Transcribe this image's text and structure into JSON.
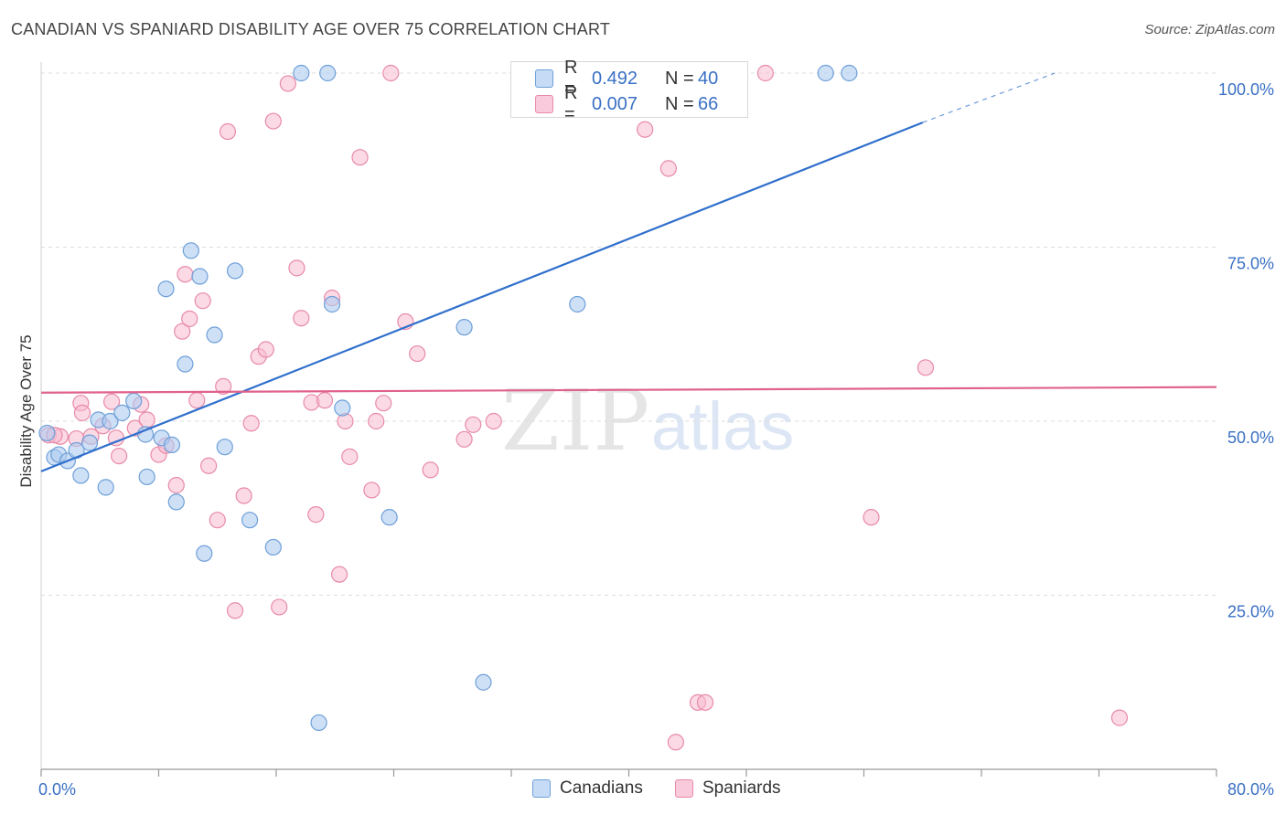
{
  "header": {
    "title": "CANADIAN VS SPANIARD DISABILITY AGE OVER 75 CORRELATION CHART",
    "source": "Source: ZipAtlas.com"
  },
  "legend_stats": {
    "canadians": {
      "r_label": "R =",
      "r_value": "0.492",
      "n_label": "N =",
      "n_value": "40"
    },
    "spaniards": {
      "r_label": "R =",
      "r_value": "0.007",
      "n_label": "N =",
      "n_value": "66"
    }
  },
  "watermark": {
    "zip": "ZIP",
    "atlas": "atlas"
  },
  "colors": {
    "canadians_fill": "#aecbf0",
    "canadians_stroke": "#6e9fd8",
    "canadians_line": "#2f6fcc",
    "spaniards_fill": "#f7bcd0",
    "spaniards_stroke": "#e88aa8",
    "spaniards_line": "#e0628c",
    "tick_text": "#3a70c4",
    "grid": "#dddddd"
  },
  "chart_data": {
    "type": "scatter",
    "title": "CANADIAN VS SPANIARD DISABILITY AGE OVER 75 CORRELATION CHART",
    "xlabel": "",
    "ylabel": "Disability Age Over 75",
    "xlim": [
      0,
      80
    ],
    "ylim": [
      0,
      100
    ],
    "x_tick_labels": [
      "0.0%",
      "80.0%"
    ],
    "y_ticks": [
      25,
      50,
      75,
      100
    ],
    "y_tick_labels": [
      "25.0%",
      "50.0%",
      "75.0%",
      "100.0%"
    ],
    "grid": true,
    "legend_position": "bottom",
    "series": [
      {
        "name": "Canadians",
        "r": 0.492,
        "n": 40,
        "trend": {
          "x0": 0,
          "y0": 42.8,
          "x1": 60,
          "y1": 92.9,
          "dashed_to_x": 69,
          "dashed_to_y": 100
        },
        "points": [
          [
            0.4,
            48.3
          ],
          [
            0.9,
            44.8
          ],
          [
            1.2,
            45.2
          ],
          [
            1.8,
            44.3
          ],
          [
            2.4,
            45.8
          ],
          [
            2.7,
            42.2
          ],
          [
            3.3,
            46.9
          ],
          [
            3.9,
            50.2
          ],
          [
            4.4,
            40.5
          ],
          [
            4.7,
            50.0
          ],
          [
            5.5,
            51.2
          ],
          [
            6.3,
            52.9
          ],
          [
            7.1,
            48.1
          ],
          [
            7.2,
            42.0
          ],
          [
            8.2,
            47.6
          ],
          [
            8.5,
            69.0
          ],
          [
            8.9,
            46.6
          ],
          [
            9.2,
            38.4
          ],
          [
            9.8,
            58.2
          ],
          [
            10.2,
            74.5
          ],
          [
            10.8,
            70.8
          ],
          [
            11.1,
            31.0
          ],
          [
            11.8,
            62.4
          ],
          [
            12.5,
            46.3
          ],
          [
            13.2,
            71.6
          ],
          [
            14.2,
            35.8
          ],
          [
            15.8,
            31.9
          ],
          [
            17.7,
            100.0
          ],
          [
            18.9,
            6.7
          ],
          [
            19.5,
            100.0
          ],
          [
            19.8,
            66.8
          ],
          [
            20.5,
            51.9
          ],
          [
            23.7,
            36.2
          ],
          [
            28.8,
            63.5
          ],
          [
            30.1,
            12.5
          ],
          [
            37.2,
            100.0
          ],
          [
            36.5,
            66.8
          ],
          [
            53.4,
            100.0
          ],
          [
            55.0,
            100.0
          ],
          [
            35.8,
            100.0
          ]
        ]
      },
      {
        "name": "Spaniards",
        "r": 0.007,
        "n": 66,
        "trend": {
          "x0": 0,
          "y0": 54.1,
          "x1": 80,
          "y1": 54.9
        },
        "points": [
          [
            0.5,
            48.0
          ],
          [
            1.3,
            47.8
          ],
          [
            2.4,
            47.5
          ],
          [
            2.7,
            52.6
          ],
          [
            2.8,
            51.2
          ],
          [
            3.4,
            47.8
          ],
          [
            4.2,
            49.3
          ],
          [
            4.8,
            52.8
          ],
          [
            5.1,
            47.6
          ],
          [
            5.3,
            45.0
          ],
          [
            6.4,
            49.0
          ],
          [
            6.8,
            52.4
          ],
          [
            7.2,
            50.2
          ],
          [
            8.0,
            45.2
          ],
          [
            8.5,
            46.5
          ],
          [
            9.2,
            40.8
          ],
          [
            9.6,
            62.9
          ],
          [
            9.8,
            71.1
          ],
          [
            10.1,
            64.7
          ],
          [
            10.6,
            53.0
          ],
          [
            11.0,
            67.3
          ],
          [
            11.4,
            43.6
          ],
          [
            12.0,
            35.8
          ],
          [
            12.4,
            55.0
          ],
          [
            12.7,
            91.6
          ],
          [
            13.2,
            22.8
          ],
          [
            13.8,
            39.3
          ],
          [
            14.3,
            49.7
          ],
          [
            14.8,
            59.3
          ],
          [
            15.3,
            60.3
          ],
          [
            15.8,
            93.1
          ],
          [
            16.2,
            23.3
          ],
          [
            16.8,
            98.5
          ],
          [
            17.4,
            72.0
          ],
          [
            17.7,
            64.8
          ],
          [
            18.4,
            52.7
          ],
          [
            18.7,
            36.6
          ],
          [
            19.3,
            53.0
          ],
          [
            19.8,
            67.7
          ],
          [
            20.3,
            28.0
          ],
          [
            20.7,
            50.0
          ],
          [
            21.0,
            44.9
          ],
          [
            21.7,
            87.9
          ],
          [
            22.5,
            40.1
          ],
          [
            22.8,
            50.0
          ],
          [
            23.3,
            52.6
          ],
          [
            23.8,
            100.0
          ],
          [
            24.8,
            64.3
          ],
          [
            25.6,
            59.7
          ],
          [
            26.5,
            43.0
          ],
          [
            28.8,
            47.4
          ],
          [
            29.4,
            49.5
          ],
          [
            30.8,
            50.0
          ],
          [
            41.1,
            91.9
          ],
          [
            42.7,
            86.3
          ],
          [
            44.9,
            100.0
          ],
          [
            46.4,
            100.0
          ],
          [
            47.2,
            100.0
          ],
          [
            49.3,
            100.0
          ],
          [
            44.7,
            9.6
          ],
          [
            45.2,
            9.6
          ],
          [
            43.2,
            3.9
          ],
          [
            56.5,
            36.2
          ],
          [
            60.2,
            57.7
          ],
          [
            73.4,
            7.4
          ],
          [
            0.9,
            48.0
          ]
        ]
      }
    ],
    "legend": [
      "Canadians",
      "Spaniards"
    ]
  }
}
